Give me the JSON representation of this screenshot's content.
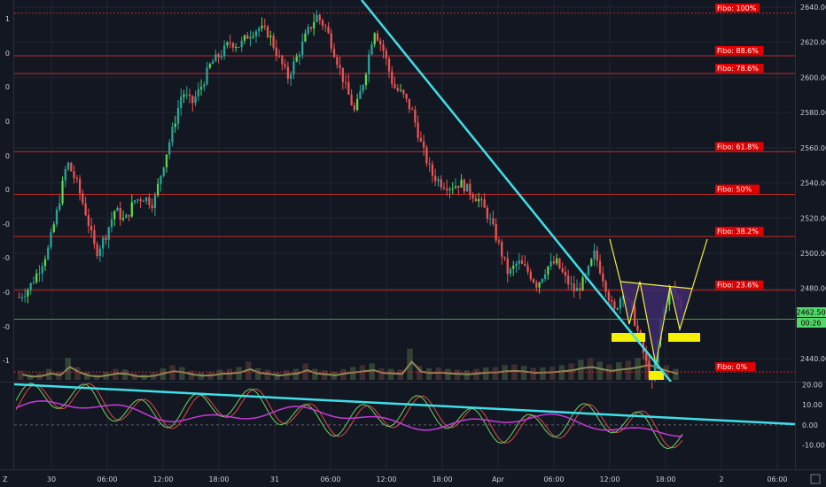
{
  "chart_data": {
    "type": "candlestick",
    "x_ticks": [
      "30",
      "06:00",
      "12:00",
      "18:00",
      "31",
      "06:00",
      "12:00",
      "18:00",
      "Apr",
      "06:00",
      "12:00",
      "18:00",
      "2",
      "06:00"
    ],
    "price_axis": {
      "ticks": [
        2640.0,
        2620.0,
        2600.0,
        2580.0,
        2560.0,
        2540.0,
        2520.0,
        2500.0,
        2480.0,
        2440.0
      ],
      "ylim": [
        2427,
        2644
      ]
    },
    "left_axis_ticks": [
      "1",
      "0",
      "0",
      "0",
      "0",
      "0",
      "-0",
      "-0",
      "-0",
      "-0",
      "-1"
    ],
    "current_price": {
      "value": "2462.50",
      "countdown": "00:26"
    },
    "fibonacci_levels": [
      {
        "label": "Fibo: 100%",
        "price": 2636.5
      },
      {
        "label": "Fibo: 88.6%",
        "price": 2612.3
      },
      {
        "label": "Fibo: 78.6%",
        "price": 2602.2
      },
      {
        "label": "Fibo: 61.8%",
        "price": 2557.7
      },
      {
        "label": "Fibo:  50%",
        "price": 2533.5
      },
      {
        "label": "Fibo: 38.2%",
        "price": 2509.5
      },
      {
        "label": "Fibo: 23.6%",
        "price": 2479.0
      },
      {
        "label": "Fibo:  0%",
        "price": 2432.5
      }
    ],
    "oscillator": {
      "ticks": [
        "20.00",
        "10.00",
        "0.00",
        "-10.00"
      ],
      "ylim": [
        -22,
        21
      ],
      "zero_line": 0
    },
    "price_path_points": [
      [
        0,
        2475
      ],
      [
        1,
        2480
      ],
      [
        2,
        2490
      ],
      [
        3,
        2502
      ],
      [
        4,
        2525
      ],
      [
        5,
        2552
      ],
      [
        6,
        2540
      ],
      [
        7,
        2522
      ],
      [
        8,
        2500
      ],
      [
        9,
        2510
      ],
      [
        10,
        2525
      ],
      [
        11,
        2518
      ],
      [
        12,
        2530
      ],
      [
        13,
        2532
      ],
      [
        14,
        2528
      ],
      [
        15,
        2550
      ],
      [
        16,
        2570
      ],
      [
        17,
        2592
      ],
      [
        18,
        2585
      ],
      [
        19,
        2595
      ],
      [
        20,
        2608
      ],
      [
        21,
        2613
      ],
      [
        22,
        2620
      ],
      [
        23,
        2618
      ],
      [
        24,
        2625
      ],
      [
        25,
        2628
      ],
      [
        26,
        2625
      ],
      [
        27,
        2612
      ],
      [
        28,
        2600
      ],
      [
        29,
        2612
      ],
      [
        30,
        2625
      ],
      [
        31,
        2635
      ],
      [
        32,
        2628
      ],
      [
        33,
        2612
      ],
      [
        34,
        2595
      ],
      [
        35,
        2580
      ],
      [
        36,
        2600
      ],
      [
        37,
        2628
      ],
      [
        38,
        2615
      ],
      [
        39,
        2595
      ],
      [
        40,
        2590
      ],
      [
        41,
        2580
      ],
      [
        42,
        2560
      ],
      [
        43,
        2545
      ],
      [
        44,
        2540
      ],
      [
        45,
        2538
      ],
      [
        46,
        2540
      ],
      [
        47,
        2535
      ],
      [
        48,
        2530
      ],
      [
        49,
        2520
      ],
      [
        50,
        2505
      ],
      [
        51,
        2488
      ],
      [
        52,
        2495
      ],
      [
        53,
        2490
      ],
      [
        54,
        2482
      ],
      [
        55,
        2492
      ],
      [
        56,
        2495
      ],
      [
        57,
        2485
      ],
      [
        58,
        2478
      ],
      [
        59,
        2485
      ],
      [
        60,
        2500
      ],
      [
        61,
        2484
      ],
      [
        62,
        2466
      ],
      [
        63,
        2479
      ],
      [
        64,
        2465
      ],
      [
        65,
        2445
      ],
      [
        66,
        2425
      ],
      [
        67,
        2466
      ],
      [
        68,
        2480
      ],
      [
        69,
        2470
      ]
    ],
    "volume_bars": [
      0.25,
      0.15,
      0.18,
      0.3,
      0.22,
      0.6,
      0.35,
      0.2,
      0.15,
      0.22,
      0.3,
      0.28,
      0.18,
      0.15,
      0.2,
      0.32,
      0.4,
      0.35,
      0.25,
      0.2,
      0.22,
      0.28,
      0.3,
      0.35,
      0.5,
      0.32,
      0.28,
      0.2,
      0.26,
      0.3,
      0.45,
      0.3,
      0.26,
      0.22,
      0.3,
      0.35,
      0.4,
      0.45,
      0.32,
      0.3,
      0.28,
      0.85,
      0.38,
      0.32,
      0.34,
      0.3,
      0.28,
      0.26,
      0.3,
      0.34,
      0.35,
      0.4,
      0.42,
      0.38,
      0.33,
      0.34,
      0.36,
      0.4,
      0.45,
      0.55,
      0.6,
      0.5,
      0.42,
      0.48,
      0.52,
      0.6,
      0.7,
      0.55,
      0.4,
      0.3
    ]
  },
  "colors": {
    "background": "#131722",
    "grid": "#1f2433",
    "up": "#26a69a",
    "up_alt": "#5bd94a",
    "down": "#ef5350",
    "fibo_line": "#c62828",
    "fibo_label_bg": "#e10000",
    "trendline": "#3ee0e8",
    "green_line": "#43a047",
    "price_badge": "#53d769",
    "pattern_fill": "#3d2a6b",
    "pattern_line": "#f1ef43",
    "yellow_block": "#f5ef00",
    "osc_magenta": "#c83ad9",
    "osc_green": "#6bd35c",
    "osc_red": "#e34848",
    "volume_ma": "#8c8a56"
  }
}
